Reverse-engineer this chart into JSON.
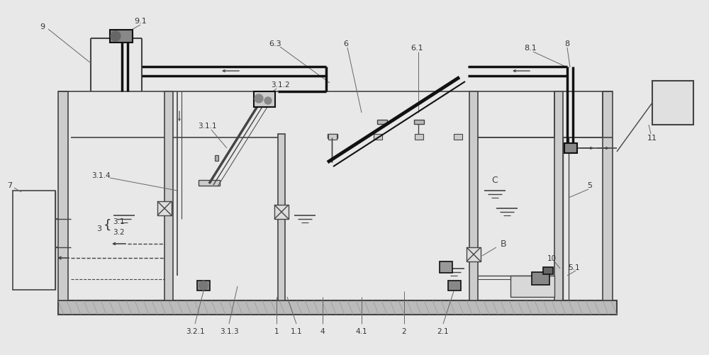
{
  "bg_color": "#e8e8e8",
  "line_color": "#666666",
  "dark_color": "#111111",
  "mid_color": "#444444",
  "label_color": "#333333",
  "figsize": [
    10.0,
    5.02
  ],
  "dpi": 100
}
